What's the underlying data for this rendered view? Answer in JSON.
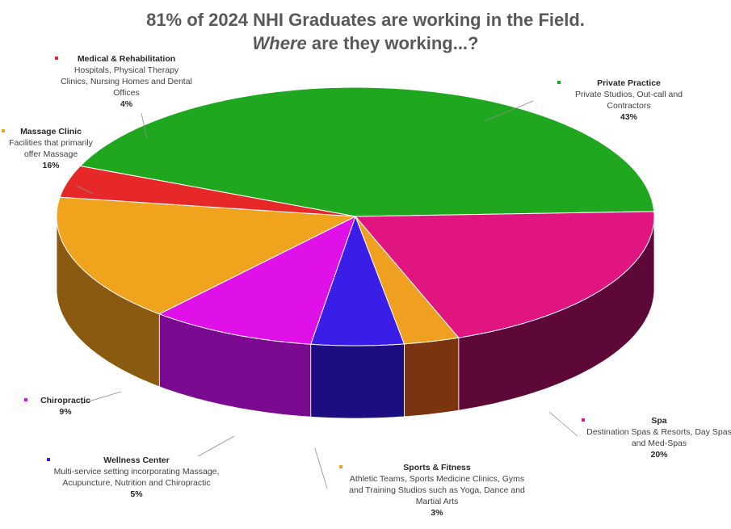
{
  "title": {
    "line1": "81% of 2024 NHI Graduates are working in the Field.",
    "line2_emph": "Where",
    "line2_rest": " are they working...?"
  },
  "chart_data": {
    "type": "pie",
    "style": "3d-exploded",
    "slices": [
      {
        "name": "Private Practice",
        "description": "Private Studios, Out-call and Contractors",
        "value": 43,
        "pct_label": "43%",
        "color": "#1fa81f",
        "dark": "#0f5f0f"
      },
      {
        "name": "Spa",
        "description": "Destination Spas & Resorts, Day Spas and Med-Spas",
        "value": 20,
        "pct_label": "20%",
        "color": "#e0157f",
        "dark": "#5e0838"
      },
      {
        "name": "Sports & Fitness",
        "description": "Athletic Teams, Sports Medicine Clinics, Gyms and Training Studios such as Yoga, Dance and Martial Arts",
        "value": 3,
        "pct_label": "3%",
        "color": "#f0a020",
        "dark": "#7a3410"
      },
      {
        "name": "Wellness Center",
        "description": "Multi-service setting incorporating Massage, Acupuncture, Nutrition and Chiropractic",
        "value": 5,
        "pct_label": "5%",
        "color": "#3a1ee8",
        "dark": "#1c0d80"
      },
      {
        "name": "Chiropractic",
        "description": "",
        "value": 9,
        "pct_label": "9%",
        "color": "#e010e8",
        "dark": "#7a0a90"
      },
      {
        "name": "Massage Clinic",
        "description": "Facilities that primarily offer Massage",
        "value": 16,
        "pct_label": "16%",
        "color": "#f0a41e",
        "dark": "#8a5a10"
      },
      {
        "name": "Medical & Rehabilitation",
        "description": "Hospitals, Physical Therapy Clinics, Nursing Homes and Dental Offices",
        "value": 4,
        "pct_label": "4%",
        "color": "#e62828",
        "dark": "#7a1010"
      }
    ]
  }
}
